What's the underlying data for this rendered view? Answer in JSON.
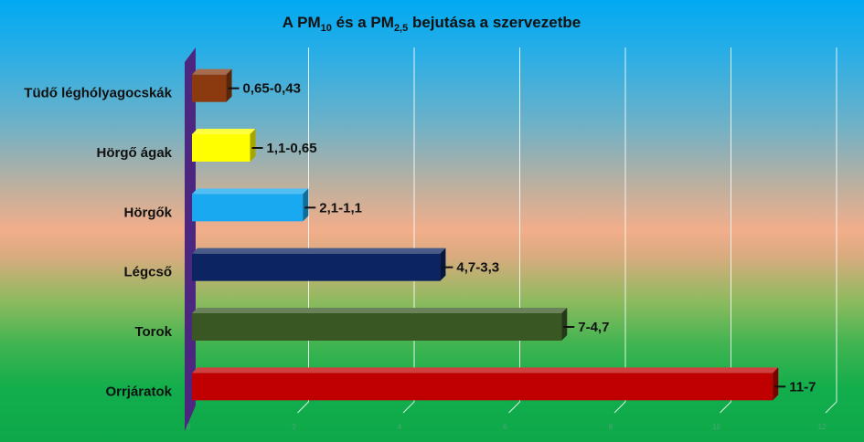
{
  "chart_data": {
    "type": "bar",
    "orientation": "horizontal",
    "style": "3d",
    "title": {
      "prefix": "A PM",
      "sub1": "10",
      "middle": " és a PM",
      "sub2": "2,5",
      "suffix": " bejutása a szervezetbe"
    },
    "categories": [
      "Tüdő léghólyagocskák",
      "Hörgő ágak",
      "Hörgők",
      "Légcső",
      "Torok",
      "Orrjáratok"
    ],
    "values": [
      0.65,
      1.1,
      2.1,
      4.7,
      7,
      11
    ],
    "value_labels": [
      "0,65-0,43",
      "1,1-0,65",
      "2,1-1,1",
      "4,7-3,3",
      "7-4,7",
      "11-7"
    ],
    "colors": [
      "#8b3a0f",
      "#ffff00",
      "#18a9f0",
      "#0c2461",
      "#385723",
      "#c00000"
    ],
    "xlim": [
      0,
      12
    ],
    "x_ticks": [
      "0",
      "2",
      "4",
      "6",
      "8",
      "10",
      "12"
    ],
    "grid": true,
    "wall_color": "#4b2780"
  }
}
